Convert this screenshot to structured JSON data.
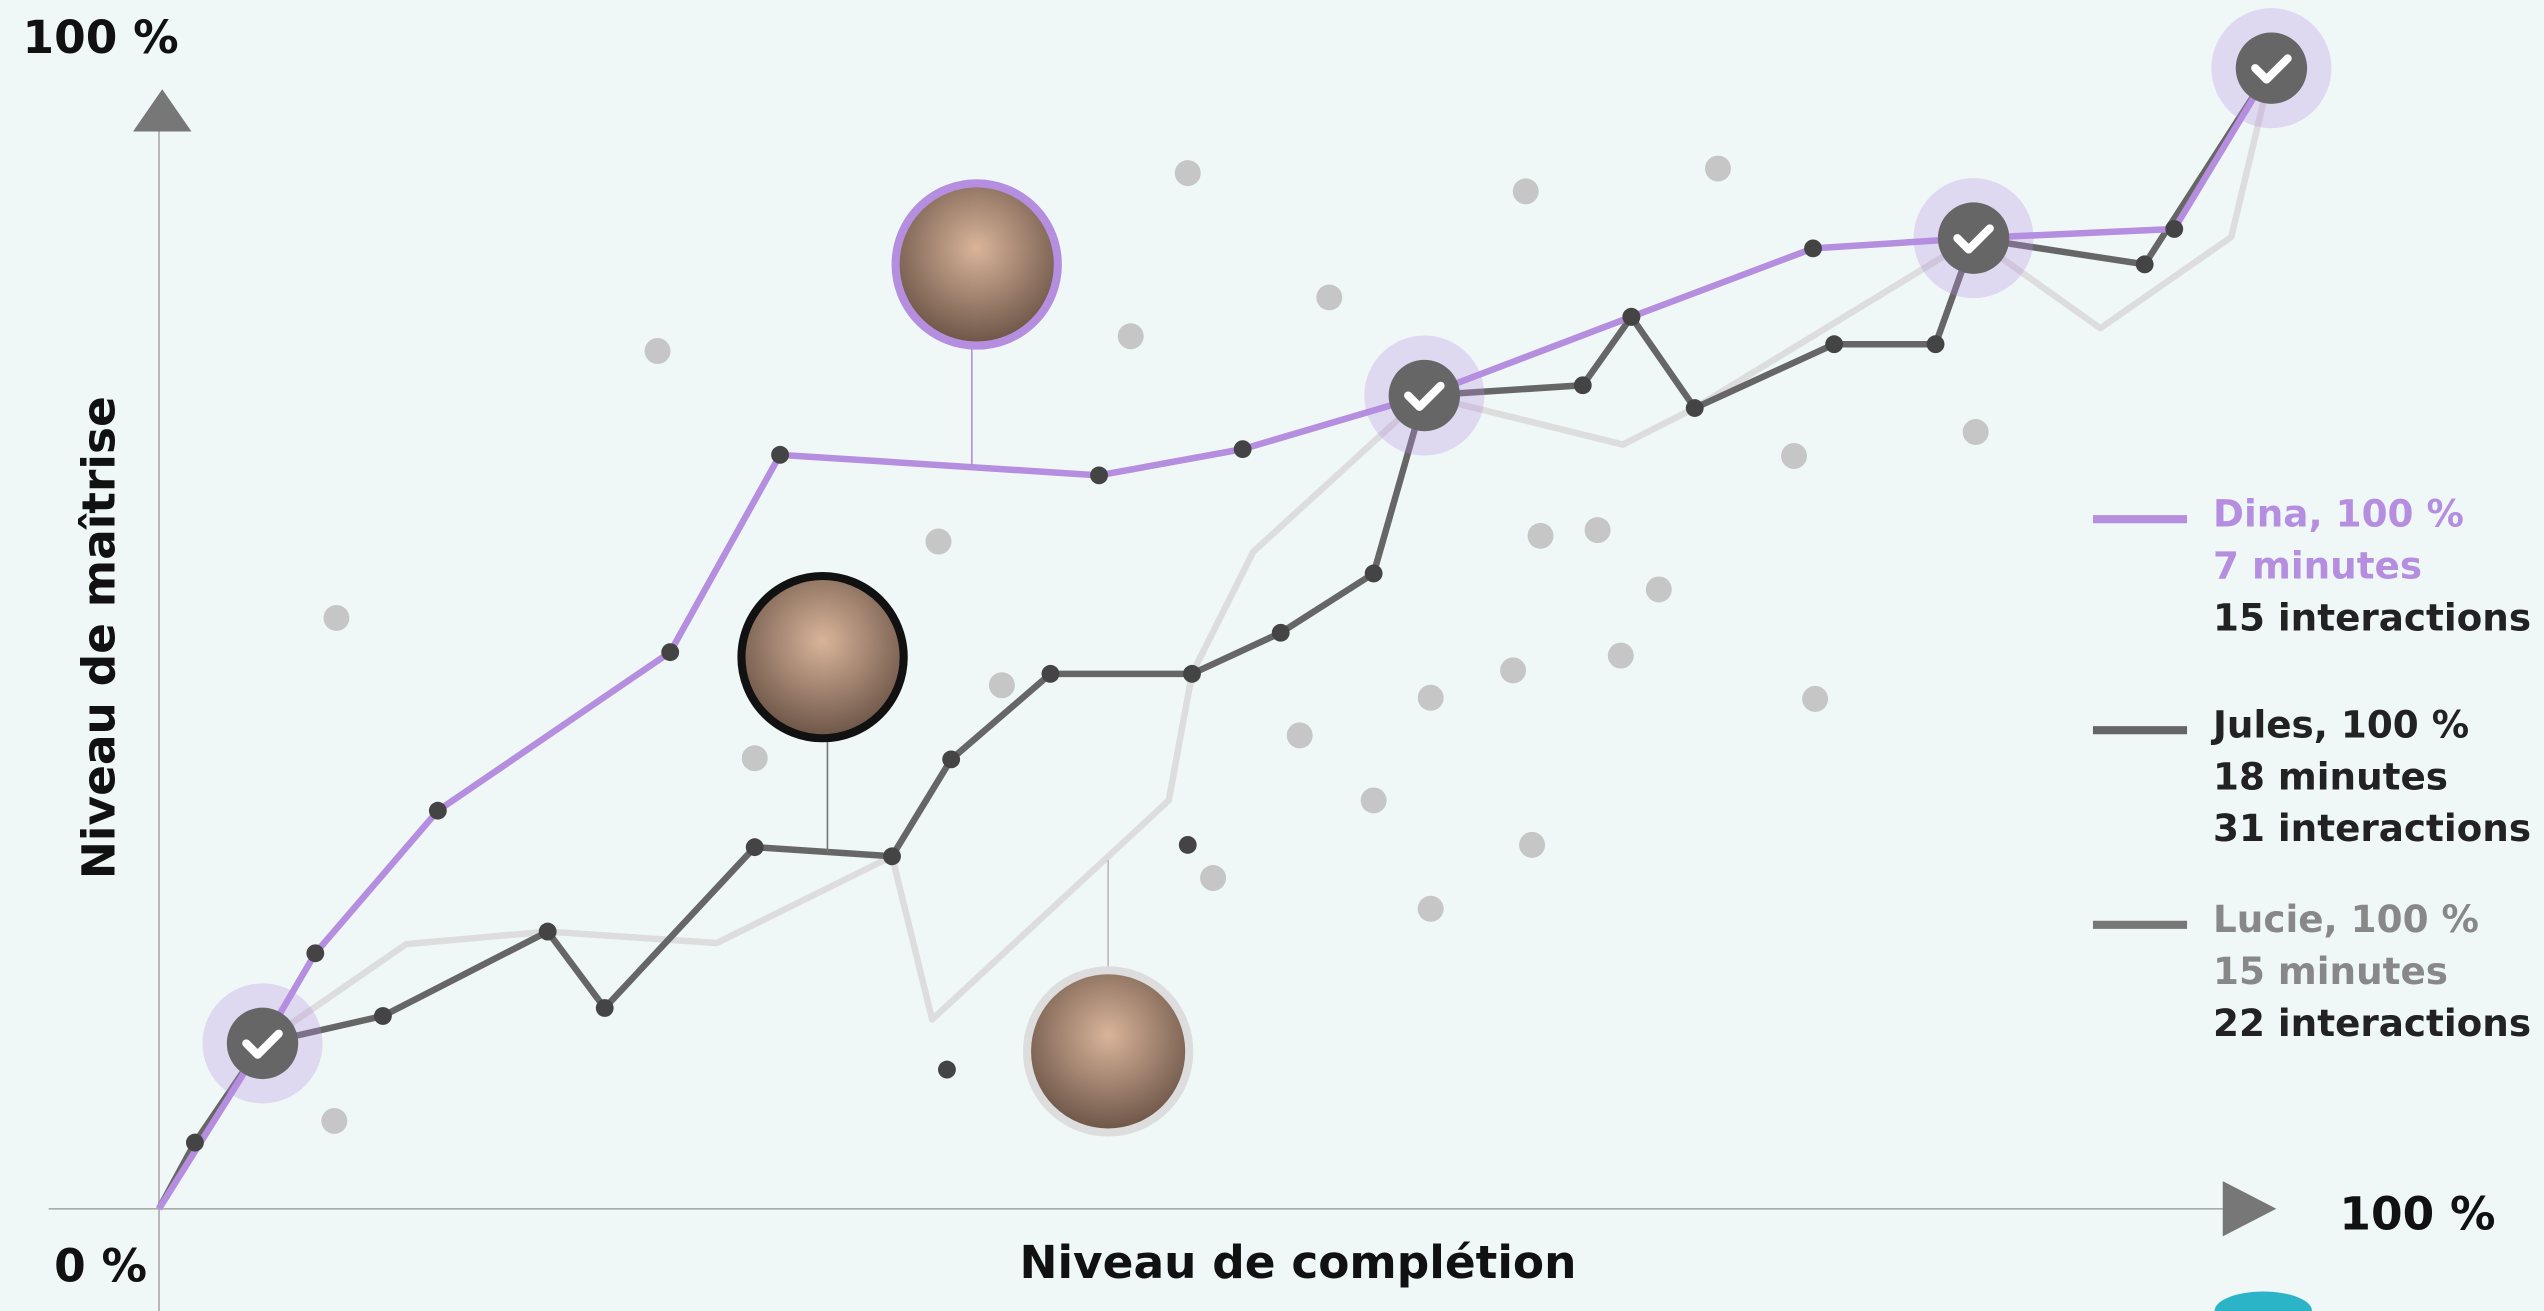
{
  "chart_data": {
    "type": "line",
    "xlabel": "Niveau de complétion",
    "ylabel": "Niveau de maîtrise",
    "xlim": [
      0,
      100
    ],
    "ylim": [
      0,
      100
    ],
    "xticks": [
      {
        "value": 100,
        "label": "100 %"
      }
    ],
    "yticks": [
      {
        "value": 0,
        "label": "0 %"
      },
      {
        "value": 100,
        "label": "100 %"
      }
    ],
    "series": [
      {
        "name": "Dina, 100 %",
        "details": [
          "7 minutes",
          "15 interactions"
        ],
        "color": "#b58ee0",
        "text_colors": [
          "#b58ee0",
          "#b58ee0",
          "#222222"
        ],
        "markers": true,
        "x": [
          0,
          4.9,
          7.4,
          13.2,
          24.2,
          29.4,
          44.5,
          51.3,
          59.9,
          69.7,
          78.3,
          85.9,
          95.4,
          100
        ],
        "values": [
          0,
          14.5,
          22.4,
          34.9,
          48.8,
          66.1,
          64.3,
          66.6,
          71.3,
          78.2,
          84.2,
          85.1,
          85.9,
          100
        ]
      },
      {
        "name": "Jules, 100 %",
        "details": [
          "18 minutes",
          "31 interactions"
        ],
        "color": "#666666",
        "text_colors": [
          "#222222",
          "#222222",
          "#222222"
        ],
        "markers": true,
        "x": [
          0,
          1.7,
          4.9,
          10.6,
          18.4,
          21.1,
          28.2,
          34.7,
          37.5,
          42.2,
          48.9,
          53.1,
          57.5,
          59.9,
          67.4,
          69.7,
          72.7,
          79.3,
          84.1,
          85.9,
          94,
          100
        ],
        "values": [
          0,
          5.8,
          14.5,
          16.9,
          24.3,
          17.6,
          31.7,
          30.9,
          39.4,
          46.9,
          46.9,
          50.5,
          55.7,
          71.3,
          72.2,
          78.2,
          70.2,
          75.8,
          75.8,
          85.1,
          82.8,
          100
        ]
      },
      {
        "name": "Lucie, 100 %",
        "details": [
          "15 minutes",
          "22 interactions"
        ],
        "color": "#dddddd",
        "legend_line_color": "#777777",
        "text_colors": [
          "#888888",
          "#888888",
          "#222222"
        ],
        "markers": false,
        "x": [
          0,
          4.9,
          11.7,
          18.4,
          26.4,
          34.7,
          36.6,
          47.8,
          48.9,
          51.8,
          59.9,
          69.3,
          72.7,
          85.9,
          91.9,
          98.1,
          100
        ],
        "values": [
          0,
          14.5,
          23.2,
          24.3,
          23.3,
          30.9,
          16.6,
          35.8,
          46.9,
          57.6,
          71.3,
          67.0,
          70.2,
          85.1,
          77.2,
          85.2,
          100
        ]
      }
    ],
    "points": {
      "color": "#c6c6c6",
      "x": [
        48.7,
        64.7,
        73.8,
        23.6,
        46.0,
        55.4,
        8.4,
        36.9,
        65.4,
        68.1,
        71.0,
        77.4,
        86.0,
        39.9,
        28.2,
        54.0,
        60.2,
        64.1,
        69.2,
        78.4,
        57.5,
        49.9,
        65.0,
        60.2,
        8.3
      ],
      "values": [
        90.8,
        89.2,
        91.2,
        75.2,
        76.5,
        79.9,
        51.8,
        58.5,
        59.0,
        59.5,
        54.3,
        66.0,
        68.1,
        45.9,
        39.5,
        41.5,
        44.8,
        47.2,
        48.5,
        44.7,
        35.8,
        29.0,
        31.9,
        26.3,
        7.7
      ]
    },
    "dark_points": {
      "color": "#444444",
      "x": [
        48.7,
        37.3
      ],
      "values": [
        31.9,
        12.2
      ]
    },
    "milestones": {
      "x": [
        4.9,
        59.9,
        85.9,
        100
      ],
      "values": [
        14.5,
        71.3,
        85.1,
        100
      ]
    }
  }
}
